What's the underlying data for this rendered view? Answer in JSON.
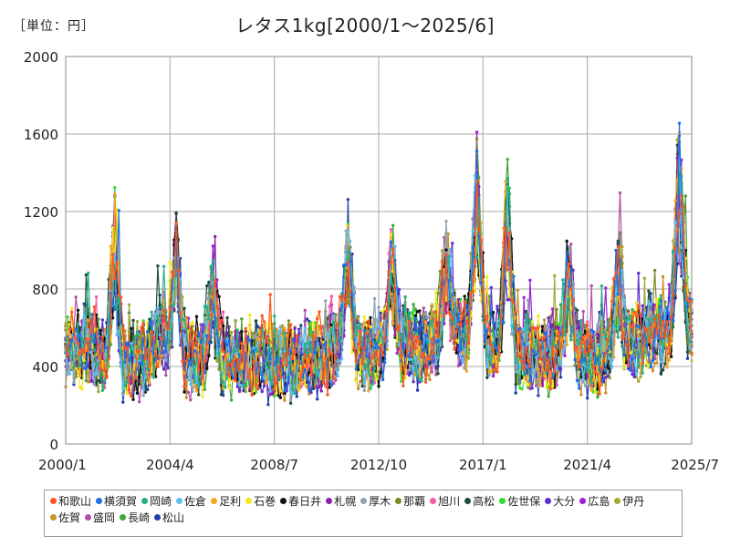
{
  "header": {
    "unit": "［単位：円］"
  },
  "chart_data": {
    "type": "line",
    "title": "レタス1kg[2000/1～2025/6]",
    "xlabel": "",
    "ylabel": "",
    "ylim": [
      0,
      2000
    ],
    "yticks": [
      0,
      400,
      800,
      1200,
      1600,
      2000
    ],
    "x_range": [
      2000.0,
      2025.5
    ],
    "xticks": [
      {
        "label": "2000/1",
        "t": 2000.0
      },
      {
        "label": "2004/4",
        "t": 2004.25
      },
      {
        "label": "2008/7",
        "t": 2008.5
      },
      {
        "label": "2012/10",
        "t": 2012.75
      },
      {
        "label": "2017/1",
        "t": 2017.0
      },
      {
        "label": "2021/4",
        "t": 2021.25
      },
      {
        "label": "2025/7",
        "t": 2025.5
      }
    ],
    "grid": true,
    "legend_position": "bottom",
    "annual_profile": [
      [
        2000,
        470
      ],
      [
        2001,
        520
      ],
      [
        2002,
        410
      ],
      [
        2003,
        420
      ],
      [
        2004,
        560
      ],
      [
        2005,
        430
      ],
      [
        2006,
        460
      ],
      [
        2007,
        420
      ],
      [
        2008,
        430
      ],
      [
        2009,
        410
      ],
      [
        2010,
        440
      ],
      [
        2011,
        470
      ],
      [
        2012,
        460
      ],
      [
        2013,
        500
      ],
      [
        2014,
        500
      ],
      [
        2015,
        520
      ],
      [
        2016,
        580
      ],
      [
        2017,
        560
      ],
      [
        2018,
        480
      ],
      [
        2019,
        460
      ],
      [
        2020,
        470
      ],
      [
        2021,
        450
      ],
      [
        2022,
        460
      ],
      [
        2023,
        520
      ],
      [
        2024,
        580
      ],
      [
        2025,
        600
      ]
    ],
    "peak_events": [
      {
        "t": 2002.0,
        "value": 1300
      },
      {
        "t": 2004.5,
        "value": 1180
      },
      {
        "t": 2006.0,
        "value": 940
      },
      {
        "t": 2011.5,
        "value": 1290
      },
      {
        "t": 2013.3,
        "value": 1100
      },
      {
        "t": 2015.5,
        "value": 1030
      },
      {
        "t": 2016.75,
        "value": 1440
      },
      {
        "t": 2018.0,
        "value": 1420
      },
      {
        "t": 2020.5,
        "value": 1030
      },
      {
        "t": 2022.5,
        "value": 1030
      },
      {
        "t": 2025.0,
        "value": 1520
      }
    ],
    "series": [
      {
        "name": "和歌山",
        "color": "#FF5522"
      },
      {
        "name": "横須賀",
        "color": "#1E6FE8"
      },
      {
        "name": "岡崎",
        "color": "#23B08A"
      },
      {
        "name": "佐倉",
        "color": "#5BC0EB"
      },
      {
        "name": "足利",
        "color": "#F5A623"
      },
      {
        "name": "石巻",
        "color": "#F2EA1B"
      },
      {
        "name": "春日井",
        "color": "#111111"
      },
      {
        "name": "札幌",
        "color": "#8B1FA8"
      },
      {
        "name": "厚木",
        "color": "#8FA3B5"
      },
      {
        "name": "那覇",
        "color": "#7A8B23"
      },
      {
        "name": "旭川",
        "color": "#F25AA5"
      },
      {
        "name": "高松",
        "color": "#1F4D3A"
      },
      {
        "name": "佐世保",
        "color": "#32DD32"
      },
      {
        "name": "大分",
        "color": "#5B2ED1"
      },
      {
        "name": "広島",
        "color": "#9D1FD6"
      },
      {
        "name": "伊丹",
        "color": "#A3A832"
      },
      {
        "name": "佐賀",
        "color": "#C8912A"
      },
      {
        "name": "盛岡",
        "color": "#B44EA8"
      },
      {
        "name": "長崎",
        "color": "#3FA535"
      },
      {
        "name": "松山",
        "color": "#1F3FA8"
      }
    ]
  }
}
